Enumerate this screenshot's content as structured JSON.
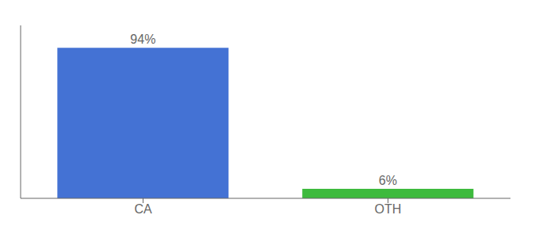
{
  "chart_data": {
    "type": "bar",
    "categories": [
      "CA",
      "OTH"
    ],
    "values": [
      94,
      6
    ],
    "value_labels": [
      "94%",
      "6%"
    ],
    "colors": [
      "#4472d4",
      "#3dba3d"
    ],
    "ylim": [
      0,
      108
    ],
    "tick_labels": "x",
    "data_labels": true,
    "grid": false
  }
}
